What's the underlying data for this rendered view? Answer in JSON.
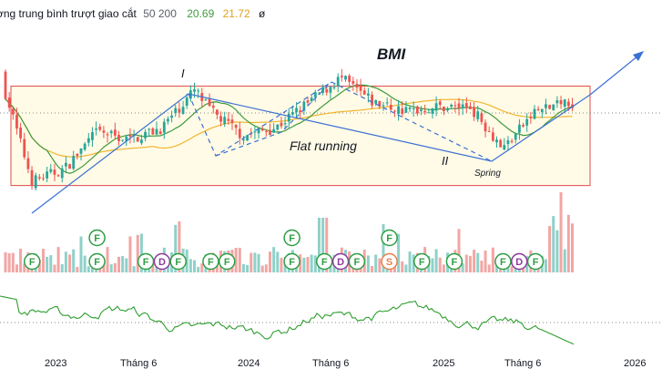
{
  "legend": {
    "label": "ờng trung bình trượt giao cắt",
    "params": "50 200",
    "ma_fast_value": "20.69",
    "ma_slow_value": "21.72",
    "empty_symbol": "ø"
  },
  "colors": {
    "up": "#26a69a",
    "down": "#ef5350",
    "vol_up": "#8fd1c9",
    "vol_down": "#f2a6a4",
    "ma_fast": "#3f9a3f",
    "ma_slow": "#f2b430",
    "pattern_lines": "#3b6fd4",
    "range_box_fill": "#fffbe6",
    "range_box_border": "#e04b4b",
    "oscillator": "#2e9e2e",
    "marker_green": "#2f9e44",
    "marker_purple": "#8e3a9e",
    "marker_orange": "#e8814d"
  },
  "annotations": {
    "title": "BMI",
    "wave_1": "I",
    "wave_2": "II",
    "flat": "Flat running",
    "spring": "Spring"
  },
  "x_axis": {
    "labels": [
      "2023",
      "Tháng 6",
      "2024",
      "Tháng 6",
      "2025",
      "Tháng 6",
      "2026"
    ]
  },
  "chart_data": {
    "type": "candlestick",
    "title": "BMI",
    "price_range": [
      14,
      36
    ],
    "key_points": [
      {
        "date": "2022-09",
        "close": 31.5
      },
      {
        "date": "2022-11",
        "close": 18.5
      },
      {
        "date": "2023-01",
        "close": 20.0
      },
      {
        "date": "2023-03",
        "close": 24.5
      },
      {
        "date": "2023-05",
        "close": 23.5
      },
      {
        "date": "2023-07",
        "close": 25.0
      },
      {
        "date": "2023-09",
        "close": 29.5
      },
      {
        "date": "2023-10",
        "close": 27.0
      },
      {
        "date": "2023-12",
        "close": 24.0
      },
      {
        "date": "2024-02",
        "close": 25.0
      },
      {
        "date": "2024-04",
        "close": 28.0
      },
      {
        "date": "2024-06",
        "close": 31.0
      },
      {
        "date": "2024-08",
        "close": 28.0
      },
      {
        "date": "2024-10",
        "close": 27.0
      },
      {
        "date": "2024-12",
        "close": 27.5
      },
      {
        "date": "2025-02",
        "close": 27.5
      },
      {
        "date": "2025-04",
        "close": 22.5
      },
      {
        "date": "2025-06",
        "close": 27.0
      },
      {
        "date": "2025-08",
        "close": 28.0
      },
      {
        "date": "2025-09",
        "close": 28.0
      }
    ],
    "moving_averages": [
      {
        "name": "50",
        "last": 20.69
      },
      {
        "name": "200",
        "last": 21.72
      }
    ],
    "range_box": {
      "top": 30.0,
      "bottom": 18.0
    },
    "volume_markers": [
      {
        "date": "2022-11",
        "letter": "F"
      },
      {
        "date": "2023-03",
        "letter": "F"
      },
      {
        "date": "2023-03",
        "letter": "F"
      },
      {
        "date": "2023-06",
        "letter": "F"
      },
      {
        "date": "2023-07",
        "letter": "D"
      },
      {
        "date": "2023-08",
        "letter": "F"
      },
      {
        "date": "2023-10",
        "letter": "F"
      },
      {
        "date": "2023-11",
        "letter": "F"
      },
      {
        "date": "2024-03",
        "letter": "F"
      },
      {
        "date": "2024-03",
        "letter": "F"
      },
      {
        "date": "2024-05",
        "letter": "F"
      },
      {
        "date": "2024-06",
        "letter": "D"
      },
      {
        "date": "2024-07",
        "letter": "F"
      },
      {
        "date": "2024-09",
        "letter": "S"
      },
      {
        "date": "2024-09",
        "letter": "F"
      },
      {
        "date": "2024-11",
        "letter": "F"
      },
      {
        "date": "2025-01",
        "letter": "F"
      },
      {
        "date": "2025-04",
        "letter": "F"
      },
      {
        "date": "2025-05",
        "letter": "D"
      },
      {
        "date": "2025-06",
        "letter": "F"
      }
    ]
  }
}
